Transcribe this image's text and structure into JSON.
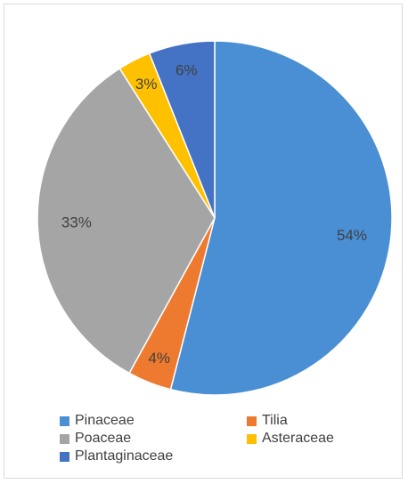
{
  "chart_data": {
    "type": "pie",
    "categories": [
      "Pinaceae",
      "Tilia",
      "Poaceae",
      "Asteraceae",
      "Plantaginaceae"
    ],
    "values": [
      54,
      4,
      33,
      3,
      6
    ],
    "labels": [
      "54%",
      "4%",
      "33%",
      "3%",
      "6%"
    ],
    "colors": [
      "#4a8fd4",
      "#ee7a2f",
      "#a5a5a5",
      "#ffc000",
      "#4472c4"
    ],
    "title": "",
    "legend_position": "bottom",
    "start_angle_deg": 0,
    "direction": "clockwise"
  }
}
